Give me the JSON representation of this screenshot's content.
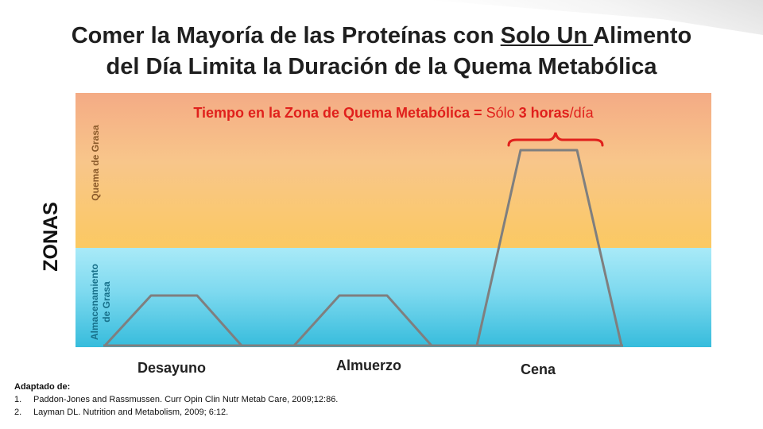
{
  "title": {
    "line1_before": "Comer la Mayoría de las Proteínas con ",
    "line1_underlined": "Solo Un ",
    "line1_after": "Alimento",
    "line2": "del Día Limita la Duración de la Quema Metabólica"
  },
  "headline": {
    "part1": "Tiempo en la Zona de Quema Metabólica = ",
    "part2": "Sólo ",
    "part3": "3 horas",
    "part4": "/día"
  },
  "zones": {
    "axis_label": "ZONAS",
    "upper_label": "Quema de Grasa",
    "lower_label_line1": "Almacenamiento",
    "lower_label_line2": "de Grasa"
  },
  "meals": [
    "Desayuno",
    "Almuerzo",
    "Cena"
  ],
  "references": {
    "heading": "Adaptado de:",
    "items": [
      "Paddon-Jones and Rassmussen. Curr Opin Clin Nutr Metab Care, 2009;12:86.",
      "Layman DL. Nutrition and Metabolism, 2009; 6:12."
    ]
  },
  "colors": {
    "fat_burn_zone": "#f8c68a",
    "fat_storage_zone": "#7dd9ef",
    "headline_red": "#e0201c",
    "curve_gray": "#7f7f7f"
  }
}
